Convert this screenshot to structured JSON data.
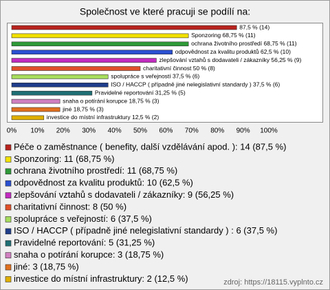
{
  "chart_data": {
    "type": "bar",
    "orientation": "horizontal",
    "title": "Společnost ve které pracuji se podílí na:",
    "categories": [
      "Péče o zaměstnance ( benefity, další vzdělávání apod. ): 14 (87,5 %)",
      "Sponzoring: 11 (68,75 %)",
      "ochrana životního prostředí: 11 (68,75 %)",
      "odpovědnost za kvalitu produktů: 10 (62,5 %)",
      "zlepšování vztahů s dodavateli / zákazníky: 9 (56,25 %)",
      "charitativní činnost: 8 (50 %)",
      "spolupráce s veřejností: 6 (37,5 %)",
      "ISO / HACCP ( případně jiné nelegislativní standardy ) : 6 (37,5 %)",
      "Pravidelné reportování: 5 (31,25 %)",
      "snaha o potírání korupce: 3 (18,75 %)",
      "jiné: 3 (18,75 %)",
      "investice do místní infrastruktury: 2 (12,5 %)"
    ],
    "values": [
      87.5,
      68.75,
      68.75,
      62.5,
      56.25,
      50,
      37.5,
      37.5,
      31.25,
      18.75,
      18.75,
      12.5
    ],
    "value_labels": [
      "87,5 % (14)",
      "Sponzoring 68,75 % (11)",
      "ochrana životního prostředí 68,75 % (11)",
      "odpovědnost za kvalitu produktů 62,5 % (10)",
      "zlepšování vztahů s dodavateli / zákazníky 56,25 % (9)",
      "charitativní činnost 50 % (8)",
      "spolupráce s veřejností 37,5 % (6)",
      "ISO / HACCP ( případně jiné nelegislativní standardy )  37,5 % (6)",
      "Pravidelné reportování 31,25 % (5)",
      "snaha o potírání korupce 18,75 % (3)",
      "jiné 18,75 % (3)",
      "investice do místní infrastruktury 12,5 % (2)"
    ],
    "colors": [
      "#b8231e",
      "#f2e200",
      "#2e9a38",
      "#2a4fd0",
      "#c22cc0",
      "#e0502a",
      "#a6dc5c",
      "#1f3d8a",
      "#1f6f74",
      "#d080c0",
      "#e07020",
      "#e0b000"
    ],
    "xlim": [
      0,
      100
    ],
    "xticks": [
      {
        "value": 0,
        "label": "0%"
      },
      {
        "value": 10,
        "label": "10%"
      },
      {
        "value": 20,
        "label": "20%"
      },
      {
        "value": 30,
        "label": "30%"
      },
      {
        "value": 40,
        "label": "40%"
      },
      {
        "value": 50,
        "label": "50%"
      },
      {
        "value": 60,
        "label": "60%"
      },
      {
        "value": 70,
        "label": "70%"
      },
      {
        "value": 80,
        "label": "80%"
      },
      {
        "value": 90,
        "label": "90%"
      },
      {
        "value": 100,
        "label": "100%"
      }
    ],
    "source": "zdroj: https://18115.vyplnto.cz"
  }
}
